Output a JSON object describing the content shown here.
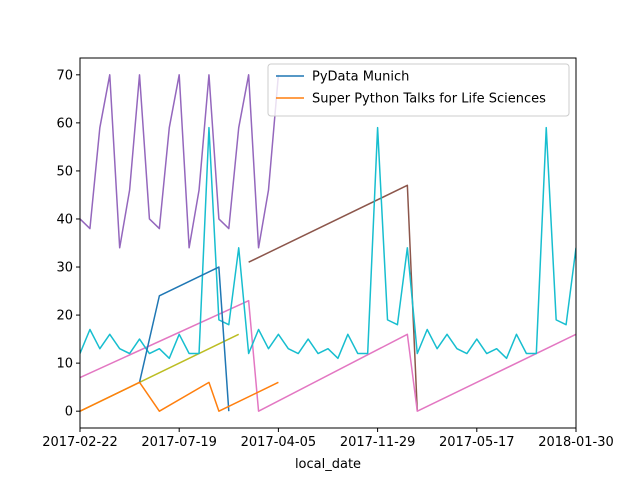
{
  "chart_data": {
    "type": "line",
    "title": "",
    "xlabel": "local_date",
    "ylabel": "",
    "xlim": [
      0,
      50
    ],
    "ylim": [
      -3.5,
      73.5
    ],
    "grid": false,
    "legend_position": "top-right",
    "x_ticks": [
      {
        "pos": 0,
        "label": "2017-02-22"
      },
      {
        "pos": 10,
        "label": "2017-07-19"
      },
      {
        "pos": 20,
        "label": "2017-04-05"
      },
      {
        "pos": 30,
        "label": "2017-11-29"
      },
      {
        "pos": 40,
        "label": "2017-05-17"
      },
      {
        "pos": 50,
        "label": "2018-01-30"
      }
    ],
    "y_ticks": [
      0,
      10,
      20,
      30,
      40,
      50,
      60,
      70
    ],
    "series": [
      {
        "color": "#9467bd",
        "x": [
          0,
          1,
          2,
          3,
          4,
          5,
          6,
          7,
          8,
          9,
          10,
          11,
          12,
          13,
          14,
          15,
          16,
          17,
          18,
          19,
          20
        ],
        "y": [
          40,
          38,
          59,
          70,
          34,
          46,
          70,
          40,
          38,
          59,
          70,
          34,
          46,
          70,
          40,
          38,
          59,
          70,
          34,
          46,
          70
        ]
      },
      {
        "color": "#8c564b",
        "x": [
          17,
          33,
          34
        ],
        "y": [
          31,
          47,
          0
        ]
      },
      {
        "color": "#e377c2",
        "x": [
          0,
          17,
          18,
          33,
          34,
          50
        ],
        "y": [
          7,
          23,
          0,
          16,
          0,
          16
        ]
      },
      {
        "color": "#bcbd22",
        "x": [
          0,
          16
        ],
        "y": [
          0,
          16
        ]
      },
      {
        "color": "#17becf",
        "x": [
          0,
          1,
          2,
          3,
          4,
          5,
          6,
          7,
          8,
          9,
          10,
          11,
          12,
          13,
          14,
          15,
          16,
          17,
          18,
          19,
          20,
          21,
          22,
          23,
          24,
          25,
          26,
          27,
          28,
          29,
          30,
          31,
          32,
          33,
          34,
          35,
          36,
          37,
          38,
          39,
          40,
          41,
          42,
          43,
          44,
          45,
          46,
          47,
          48,
          49,
          50
        ],
        "y": [
          12,
          17,
          13,
          16,
          13,
          12,
          15,
          12,
          13,
          11,
          16,
          12,
          12,
          59,
          19,
          18,
          34,
          12,
          17,
          13,
          16,
          13,
          12,
          15,
          12,
          13,
          11,
          16,
          12,
          12,
          59,
          19,
          18,
          34,
          12,
          17,
          13,
          16,
          13,
          12,
          15,
          12,
          13,
          11,
          16,
          12,
          12,
          59,
          19,
          18,
          34
        ]
      },
      {
        "name": "PyData Munich",
        "color": "#1f77b4",
        "x": [
          6,
          8,
          14,
          15
        ],
        "y": [
          6,
          24,
          30,
          0
        ]
      },
      {
        "name": "Super Python Talks for Life Sciences",
        "color": "#ff7f0e",
        "x": [
          0,
          6,
          8,
          13,
          14,
          20
        ],
        "y": [
          0,
          6,
          0,
          6,
          0,
          6
        ]
      }
    ]
  }
}
